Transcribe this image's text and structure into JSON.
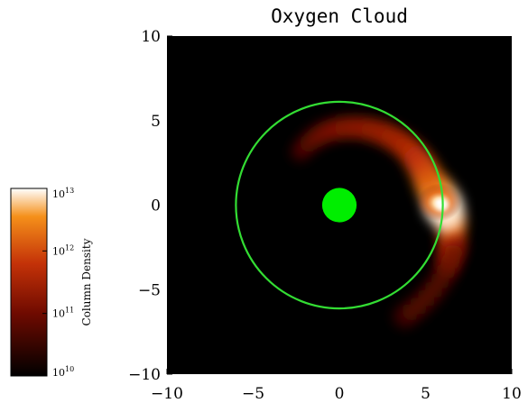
{
  "chart_data": {
    "type": "heatmap",
    "title": "Oxygen Cloud",
    "xlabel": "",
    "ylabel": "",
    "xlim": [
      -10,
      10
    ],
    "ylim": [
      -10,
      10
    ],
    "x_ticks": [
      {
        "value": -10,
        "label": "−10"
      },
      {
        "value": -5,
        "label": "−5"
      },
      {
        "value": 0,
        "label": "0"
      },
      {
        "value": 5,
        "label": "5"
      },
      {
        "value": 10,
        "label": "10"
      }
    ],
    "y_ticks": [
      {
        "value": 10,
        "label": "10"
      },
      {
        "value": 5,
        "label": "5"
      },
      {
        "value": 0,
        "label": "0"
      },
      {
        "value": -5,
        "label": "−5"
      },
      {
        "value": -10,
        "label": "−10"
      }
    ],
    "background_color": "#000000",
    "planet": {
      "x": 0,
      "y": 0,
      "radius": 1,
      "color": "#00ee00"
    },
    "orbit_circle": {
      "x": 0,
      "y": 0,
      "radius": 6,
      "color": "#33dd33"
    },
    "cloud": {
      "peak": {
        "x": 6,
        "y": 0,
        "log_density": 13
      },
      "description_path": [
        {
          "angle_deg": -30,
          "r": 7.2,
          "log_density": 10.9
        },
        {
          "angle_deg": -10,
          "r": 6.6,
          "log_density": 11.8
        },
        {
          "angle_deg": 0,
          "r": 6.0,
          "log_density": 13.0
        },
        {
          "angle_deg": 15,
          "r": 5.4,
          "log_density": 12.0
        },
        {
          "angle_deg": 40,
          "r": 5.2,
          "log_density": 11.4
        },
        {
          "angle_deg": 70,
          "r": 4.8,
          "log_density": 11.1
        },
        {
          "angle_deg": 100,
          "r": 4.4,
          "log_density": 10.9
        },
        {
          "angle_deg": 130,
          "r": 3.8,
          "log_density": 10.5
        }
      ]
    },
    "colorbar": {
      "label": "Column Density",
      "scale": "log",
      "range": [
        10000000000.0,
        10000000000000.0
      ],
      "ticks": [
        {
          "base": "10",
          "exp": "10"
        },
        {
          "base": "10",
          "exp": "11"
        },
        {
          "base": "10",
          "exp": "12"
        },
        {
          "base": "10",
          "exp": "13"
        }
      ],
      "colors": [
        "#000000",
        "#6e0a00",
        "#c43208",
        "#f5901a",
        "#ffffff"
      ]
    }
  }
}
